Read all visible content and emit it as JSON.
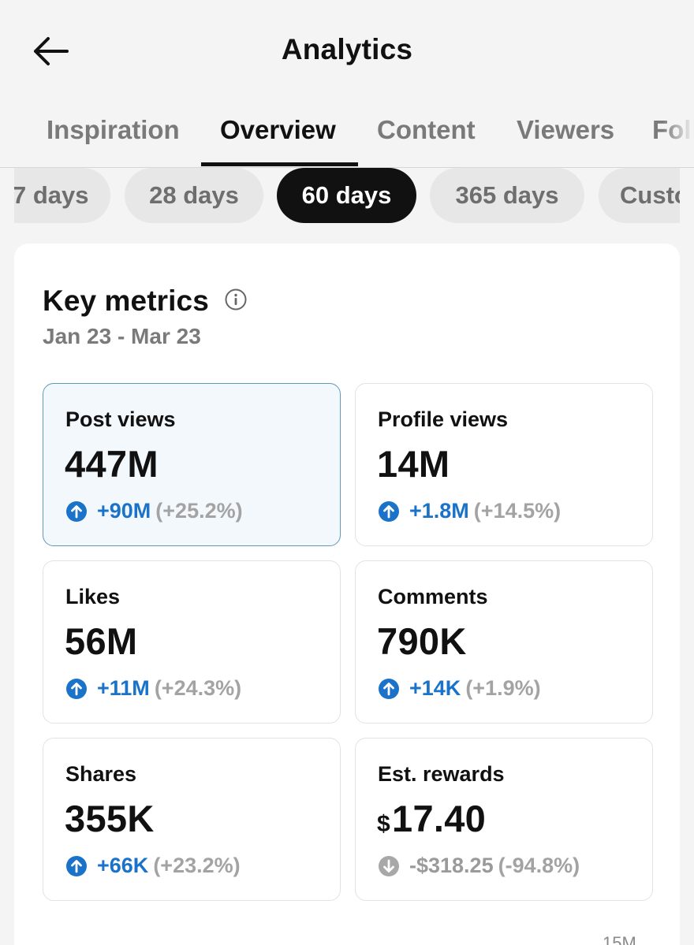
{
  "header": {
    "title": "Analytics"
  },
  "tabs": [
    {
      "label": "Inspiration"
    },
    {
      "label": "Overview"
    },
    {
      "label": "Content"
    },
    {
      "label": "Viewers"
    },
    {
      "label": "Followers"
    }
  ],
  "active_tab": "Overview",
  "ranges": [
    {
      "label": "7 days"
    },
    {
      "label": "28 days"
    },
    {
      "label": "60 days"
    },
    {
      "label": "365 days"
    },
    {
      "label": "Custom"
    }
  ],
  "active_range": "60 days",
  "key_metrics": {
    "title": "Key metrics",
    "date_range": "Jan 23 - Mar 23",
    "items": [
      {
        "label": "Post views",
        "value": "447M",
        "delta": "+90M",
        "pct": "(+25.2%)",
        "trend": "up"
      },
      {
        "label": "Profile views",
        "value": "14M",
        "delta": "+1.8M",
        "pct": "(+14.5%)",
        "trend": "up"
      },
      {
        "label": "Likes",
        "value": "56M",
        "delta": "+11M",
        "pct": "(+24.3%)",
        "trend": "up"
      },
      {
        "label": "Comments",
        "value": "790K",
        "delta": "+14K",
        "pct": "(+1.9%)",
        "trend": "up"
      },
      {
        "label": "Shares",
        "value": "355K",
        "delta": "+66K",
        "pct": "(+23.2%)",
        "trend": "up"
      },
      {
        "label": "Est. rewards",
        "currency": "$",
        "value": "17.40",
        "delta": "-$318.25",
        "pct": "(-94.8%)",
        "trend": "down"
      }
    ]
  },
  "chart": {
    "y_top_label": "15M"
  },
  "colors": {
    "accent": "#1a73c9",
    "muted": "#9a9a9a",
    "selected_border": "#5e9ab5",
    "selected_bg": "#f3f8fc"
  }
}
